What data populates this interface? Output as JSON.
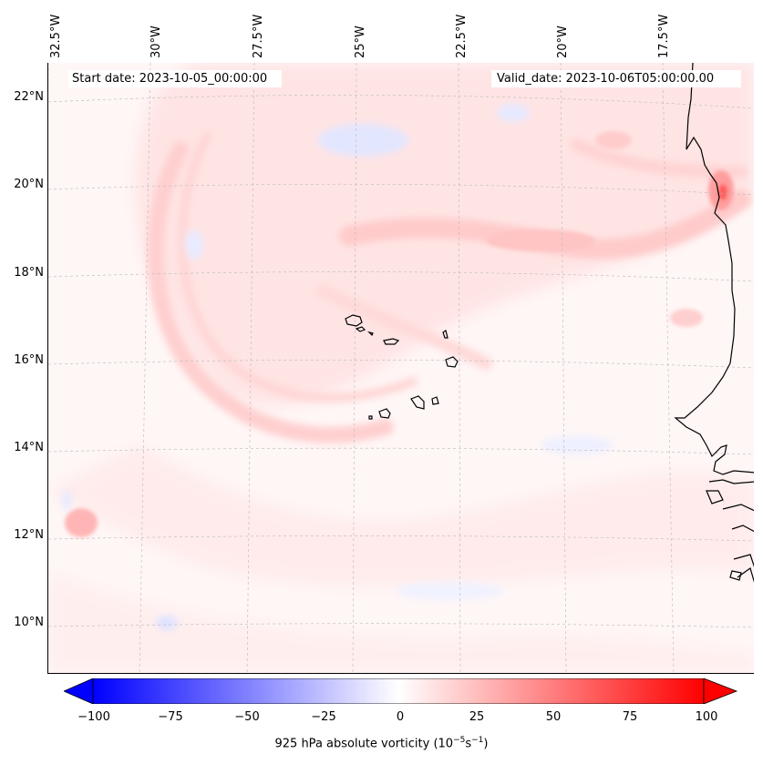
{
  "map": {
    "start_date_label": "Start date: 2023-10-05_00:00:00",
    "valid_date_label": "Valid_date: 2023-10-06T05:00:00.00",
    "lon_labels": [
      "32.5°W",
      "30°W",
      "27.5°W",
      "25°W",
      "22.5°W",
      "20°W",
      "17.5°W"
    ],
    "lat_labels": [
      "22°N",
      "20°N",
      "18°N",
      "16°N",
      "14°N",
      "12°N",
      "10°N"
    ],
    "colors": {
      "negative": "#0000ff",
      "neutral": "#ffffff",
      "positive": "#ff0000",
      "coastline": "#000000"
    }
  },
  "colorbar": {
    "title": "925 hPa absolute vorticity (10",
    "title_exp": "−5",
    "title_mid": "s",
    "title_exp2": "−1",
    "title_end": ")",
    "ticks": [
      "−100",
      "−75",
      "−50",
      "−25",
      "0",
      "25",
      "50",
      "75",
      "100"
    ],
    "range": [
      -100,
      100
    ],
    "extend": "both"
  }
}
